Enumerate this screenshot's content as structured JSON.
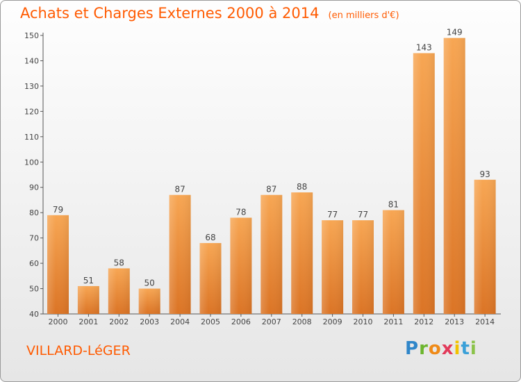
{
  "header": {
    "title": "Achats et Charges Externes 2000 à 2014",
    "unit": "(en milliers d'€)"
  },
  "footer": {
    "commune": "VILLARD-LéGER",
    "logo_letters": [
      "P",
      "r",
      "o",
      "x",
      "i",
      "t",
      "i"
    ]
  },
  "colors": {
    "title": "#ff5a00",
    "bar_light": "#f7a653",
    "bar_dark": "#db7425",
    "axis": "#555555"
  },
  "chart_data": {
    "type": "bar",
    "title": "Achats et Charges Externes 2000 à 2014",
    "subtitle": "(en milliers d'€)",
    "categories": [
      "2000",
      "2001",
      "2002",
      "2003",
      "2004",
      "2005",
      "2006",
      "2007",
      "2008",
      "2009",
      "2010",
      "2011",
      "2012",
      "2013",
      "2014"
    ],
    "values": [
      79,
      51,
      58,
      50,
      87,
      68,
      78,
      87,
      88,
      77,
      77,
      81,
      143,
      149,
      93
    ],
    "ylim": [
      40,
      150
    ],
    "yticks": [
      40,
      50,
      60,
      70,
      80,
      90,
      100,
      110,
      120,
      130,
      140,
      150
    ],
    "grid": false,
    "data_labels": true
  }
}
